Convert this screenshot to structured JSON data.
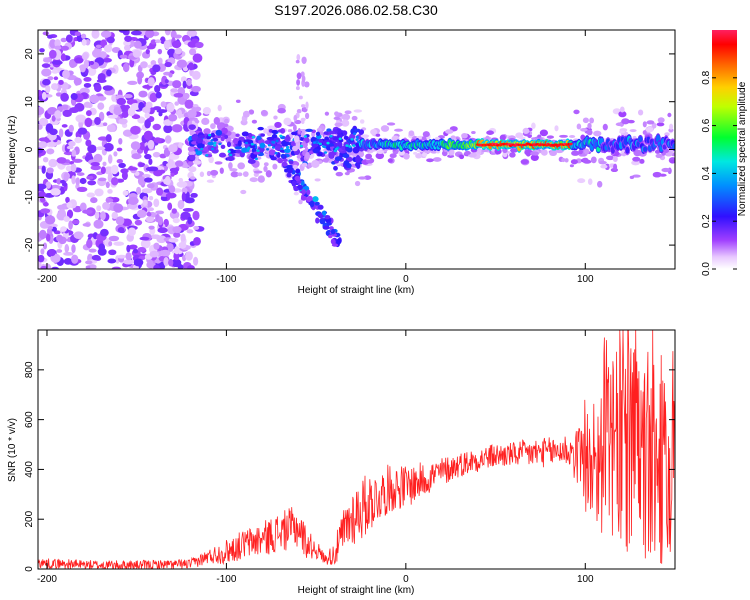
{
  "title": "S197.2026.086.02.58.C30",
  "chart_data": [
    {
      "type": "heatmap",
      "title": "S197.2026.086.02.58.C30",
      "xlabel": "Height of straight line (km)",
      "ylabel": "Frequency (Hz)",
      "xlim": [
        -205,
        150
      ],
      "ylim": [
        -25,
        25
      ],
      "xticks": [
        -200,
        -100,
        0,
        100
      ],
      "yticks": [
        -20,
        -10,
        0,
        10,
        20
      ],
      "colorbar": {
        "label": "Normalized spectral amplitude",
        "range": [
          0.0,
          1.0
        ],
        "ticks": [
          0.0,
          0.2,
          0.4,
          0.6,
          0.8
        ],
        "colors": [
          "#ffffff",
          "#e8c8ff",
          "#9a2cff",
          "#2020ff",
          "#00e0ff",
          "#00ff40",
          "#ffff00",
          "#ff8800",
          "#ff0000",
          "#ff2060"
        ]
      },
      "features": {
        "noise_region_x": [
          -205,
          -120
        ],
        "signal_band_freq_hz": 1,
        "strong_signal_x": [
          -25,
          100
        ],
        "peak_amplitude_x": [
          40,
          90
        ],
        "slanted_feature_x": [
          -70,
          -40
        ],
        "slanted_feature_freq_hz": [
          0,
          -19
        ]
      }
    },
    {
      "type": "line",
      "xlabel": "Height of straight line (km)",
      "ylabel": "SNR (10 * v/v)",
      "xlim": [
        -205,
        150
      ],
      "ylim": [
        0,
        960
      ],
      "xticks": [
        -200,
        -100,
        0,
        100
      ],
      "yticks": [
        0,
        200,
        400,
        600,
        800
      ],
      "line_color": "#ff2020",
      "series": [
        {
          "name": "SNR",
          "x": [
            -205,
            -190,
            -170,
            -150,
            -130,
            -120,
            -110,
            -100,
            -90,
            -80,
            -70,
            -60,
            -55,
            -50,
            -45,
            -40,
            -35,
            -30,
            -25,
            -20,
            -15,
            -10,
            -5,
            0,
            10,
            20,
            30,
            40,
            50,
            60,
            70,
            80,
            90,
            95,
            100,
            105,
            110,
            115,
            120,
            125,
            130,
            135,
            140,
            145,
            150
          ],
          "values": [
            25,
            20,
            15,
            15,
            18,
            20,
            50,
            70,
            100,
            120,
            150,
            170,
            100,
            80,
            40,
            60,
            140,
            210,
            240,
            270,
            290,
            320,
            330,
            330,
            360,
            390,
            420,
            440,
            455,
            460,
            465,
            470,
            480,
            450,
            400,
            420,
            450,
            470,
            480,
            460,
            440,
            400,
            420,
            350,
            300
          ],
          "noise_amplitude": [
            20,
            20,
            20,
            20,
            20,
            20,
            30,
            50,
            60,
            70,
            80,
            90,
            60,
            40,
            20,
            50,
            100,
            120,
            130,
            120,
            100,
            100,
            90,
            90,
            70,
            60,
            50,
            50,
            50,
            50,
            60,
            60,
            70,
            110,
            180,
            250,
            320,
            380,
            420,
            440,
            440,
            420,
            400,
            380,
            350
          ]
        }
      ]
    }
  ]
}
